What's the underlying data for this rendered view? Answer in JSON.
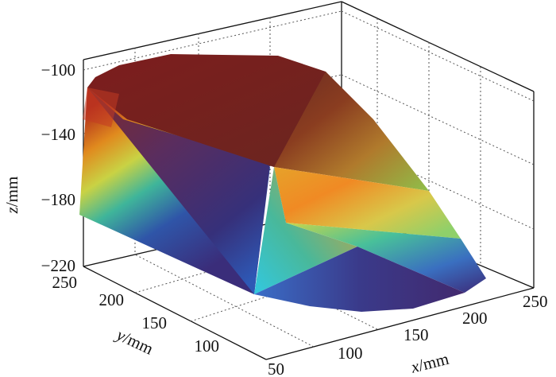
{
  "chart_data": {
    "type": "surface3d",
    "title": "",
    "xlabel": {
      "var": "x",
      "unit": "/mm"
    },
    "ylabel": {
      "var": "y",
      "unit": "/mm"
    },
    "zlabel": {
      "var": "z",
      "unit": "/mm"
    },
    "x_ticks": [
      "100",
      "150",
      "200",
      "250"
    ],
    "y_ticks": [
      "50",
      "100",
      "150",
      "200",
      "250"
    ],
    "z_ticks": [
      "−100",
      "−140",
      "−180",
      "−220"
    ],
    "xlim": [
      80,
      250
    ],
    "ylim": [
      50,
      250
    ],
    "zlim": [
      -220,
      -85
    ],
    "grid": true,
    "colormap": "jet-like, high z red/brown, low z blue/purple"
  }
}
